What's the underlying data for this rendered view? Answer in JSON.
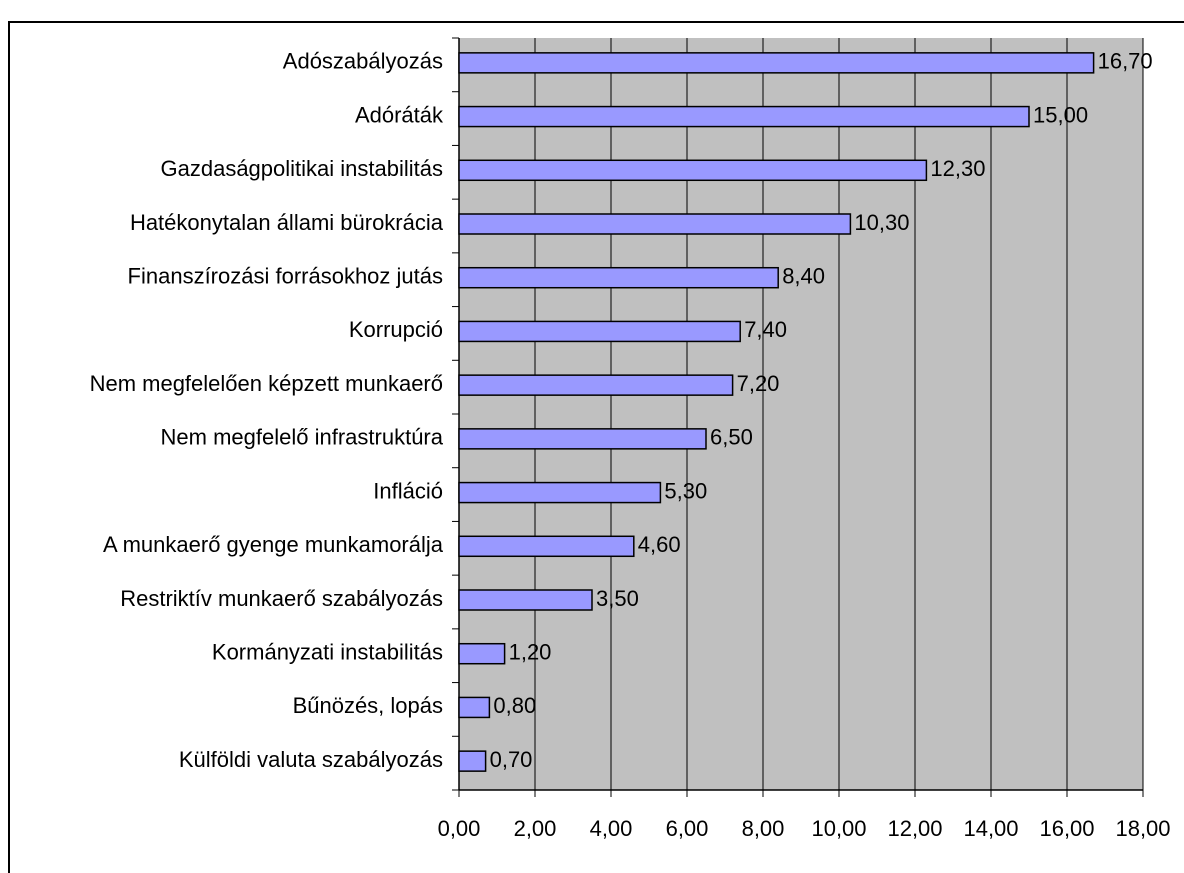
{
  "chart_data": {
    "type": "bar",
    "orientation": "horizontal",
    "categories": [
      "Adószabályozás",
      "Adóráták",
      "Gazdaságpolitikai instabilitás",
      "Hatékonytalan állami bürokrácia",
      "Finanszírozási forrásokhoz jutás",
      "Korrupció",
      "Nem megfelelően képzett munkaerő",
      "Nem megfelelő infrastruktúra",
      "Infláció",
      "A munkaerő gyenge munkamorálja",
      "Restriktív munkaerő szabályozás",
      "Kormányzati instabilitás",
      "Bűnözés, lopás",
      "Külföldi valuta szabályozás"
    ],
    "values": [
      16.7,
      15.0,
      12.3,
      10.3,
      8.4,
      7.4,
      7.2,
      6.5,
      5.3,
      4.6,
      3.5,
      1.2,
      0.8,
      0.7
    ],
    "value_labels": [
      "16,70",
      "15,00",
      "12,30",
      "10,30",
      "8,40",
      "7,40",
      "7,20",
      "6,50",
      "5,30",
      "4,60",
      "3,50",
      "1,20",
      "0,80",
      "0,70"
    ],
    "color": "#9999ff",
    "xlim": [
      0,
      18
    ],
    "xticks": [
      {
        "value": 0,
        "label": "0,00"
      },
      {
        "value": 2,
        "label": "2,00"
      },
      {
        "value": 4,
        "label": "4,00"
      },
      {
        "value": 6,
        "label": "6,00"
      },
      {
        "value": 8,
        "label": "8,00"
      },
      {
        "value": 10,
        "label": "10,00"
      },
      {
        "value": 12,
        "label": "12,00"
      },
      {
        "value": 14,
        "label": "14,00"
      },
      {
        "value": 16,
        "label": "16,00"
      },
      {
        "value": 18,
        "label": "18,00"
      }
    ],
    "grid": true
  }
}
